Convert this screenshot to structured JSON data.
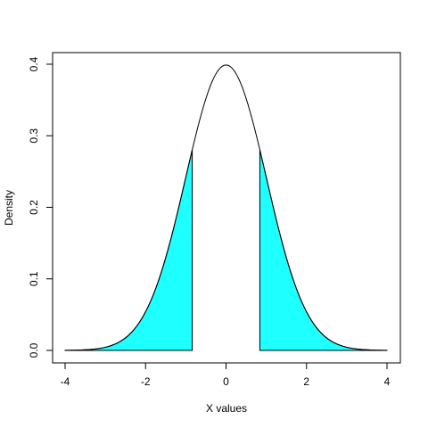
{
  "chart_data": {
    "type": "area",
    "title": "",
    "xlabel": "X values",
    "ylabel": "Density",
    "xlim": [
      -4,
      4
    ],
    "ylim": [
      0.0,
      0.4
    ],
    "x_ticks": [
      -4,
      -2,
      0,
      2,
      4
    ],
    "x_tick_labels": [
      "-4",
      "-2",
      "0",
      "2",
      "4"
    ],
    "y_ticks": [
      0.0,
      0.1,
      0.2,
      0.3,
      0.4
    ],
    "y_tick_labels": [
      "0.0",
      "0.1",
      "0.2",
      "0.3",
      "0.4"
    ],
    "grid": false,
    "legend": "none",
    "curve": {
      "distribution": "standard-normal",
      "x_step": 0.05,
      "x": [
        -4,
        -3,
        -2,
        -1,
        0,
        1,
        2,
        3,
        4
      ],
      "y": [
        0.0001,
        0.0044,
        0.054,
        0.242,
        0.3989,
        0.242,
        0.054,
        0.0044,
        0.0001
      ]
    },
    "shaded_regions": [
      {
        "from": -4,
        "to": -0.84
      },
      {
        "from": 0.84,
        "to": 4
      }
    ],
    "colors": {
      "fill": "#1EFFFF",
      "line": "#000000",
      "frame": "#000000"
    }
  }
}
